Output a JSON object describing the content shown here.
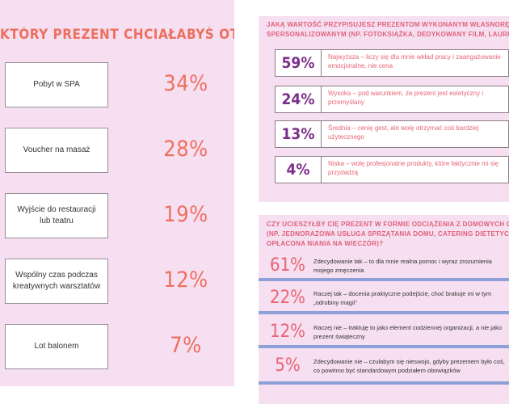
{
  "left": {
    "question": "KTÓRY PREZENT CHCIAŁABYŚ OTRZYMAĆ?",
    "options": [
      {
        "label": "Pobyt w SPA",
        "pct": "34%"
      },
      {
        "label": "Voucher na masaż",
        "pct": "28%"
      },
      {
        "label": "Wyjście do restauracji lub teatru",
        "pct": "19%"
      },
      {
        "label": "Wspólny czas podczas kreatywnych warsztatów",
        "pct": "12%"
      },
      {
        "label": "Lot balonem",
        "pct": "7%"
      }
    ]
  },
  "right_top": {
    "question_line1": "JAKĄ WARTOŚĆ PRZYPISUJESZ PREZENTOM WYKONANYM WŁASNORĘCZNIE (DIY) LUB",
    "question_line2": "SPERSONALIZOWANYM (NP. FOTOKSIĄŻKA, DEDYKOWANY FILM, LAURKA)?",
    "answers": [
      {
        "pct": "59%",
        "text": "Najwyższa – liczy się dla mnie wkład pracy i zaangażowanie emocjonalne, nie cena"
      },
      {
        "pct": "24%",
        "text": "Wysoka – pod warunkiem, że prezent jest estetyczny i przemyślany"
      },
      {
        "pct": "13%",
        "text": "Średnia – cenię gest, ale wolę otrzymać coś bardziej użytecznego"
      },
      {
        "pct": "4%",
        "text": "Niska – wolę profesjonalne produkty, które faktycznie mi się przydadzą"
      }
    ]
  },
  "right_bottom": {
    "question_line1": "CZY UCIESZYŁBY CIĘ PREZENT W FORMIE ODCIĄŻENIA Z DOMOWYCH OBOWIĄZKÓW",
    "question_line2": "(NP. JEDNORAZOWA USŁUGA SPRZĄTANIA DOMU, CATERING DIETETYCZNY NA TYDZIEŃ,",
    "question_line3": "OPŁACONA NIANIA NA WIECZÓR)?",
    "answers": [
      {
        "pct": "61%",
        "text": "Zdecydowanie tak – to dla mnie realna pomoc i wyraz zrozumienia mojego zmęczenia"
      },
      {
        "pct": "22%",
        "text": "Raczej tak – docenia praktyczne podejście, choć brakuje mi w tym „odrobiny magii”"
      },
      {
        "pct": "12%",
        "text": "Raczej nie – traktuję to jako element codziennej organizacji, a nie jako prezent świąteczny"
      },
      {
        "pct": "5%",
        "text": "Zdecydowanie nie – czułabym się nieswojo, gdyby prezentem było coś, co powinno być standardowym podziałem obowiązków"
      }
    ]
  },
  "chart_data": [
    {
      "type": "table",
      "title": "KTÓRY PREZENT CHCIAŁABYŚ OTRZYMAĆ?",
      "categories": [
        "Pobyt w SPA",
        "Voucher na masaż",
        "Wyjście do restauracji lub teatru",
        "Wspólny czas podczas kreatywnych warsztatów",
        "Lot balonem"
      ],
      "values": [
        34,
        28,
        19,
        12,
        7
      ]
    },
    {
      "type": "table",
      "title": "JAKĄ WARTOŚĆ PRZYPISUJESZ PREZENTOM WYKONANYM WŁASNORĘCZNIE (DIY) LUB SPERSONALIZOWANYM (NP. FOTOKSIĄŻKA, DEDYKOWANY FILM, LAURKA)?",
      "categories": [
        "Najwyższa",
        "Wysoka",
        "Średnia",
        "Niska"
      ],
      "values": [
        59,
        24,
        13,
        4
      ]
    },
    {
      "type": "table",
      "title": "CZY UCIESZYŁBY CIĘ PREZENT W FORMIE ODCIĄŻENIA Z DOMOWYCH OBOWIĄZKÓW (NP. JEDNORAZOWA USŁUGA SPRZĄTANIA DOMU, CATERING DIETETYCZNY NA TYDZIEŃ, OPŁACONA NIANIA NA WIECZÓR)?",
      "categories": [
        "Zdecydowanie tak",
        "Raczej tak",
        "Raczej nie",
        "Zdecydowanie nie"
      ],
      "values": [
        61,
        22,
        12,
        5
      ]
    }
  ]
}
